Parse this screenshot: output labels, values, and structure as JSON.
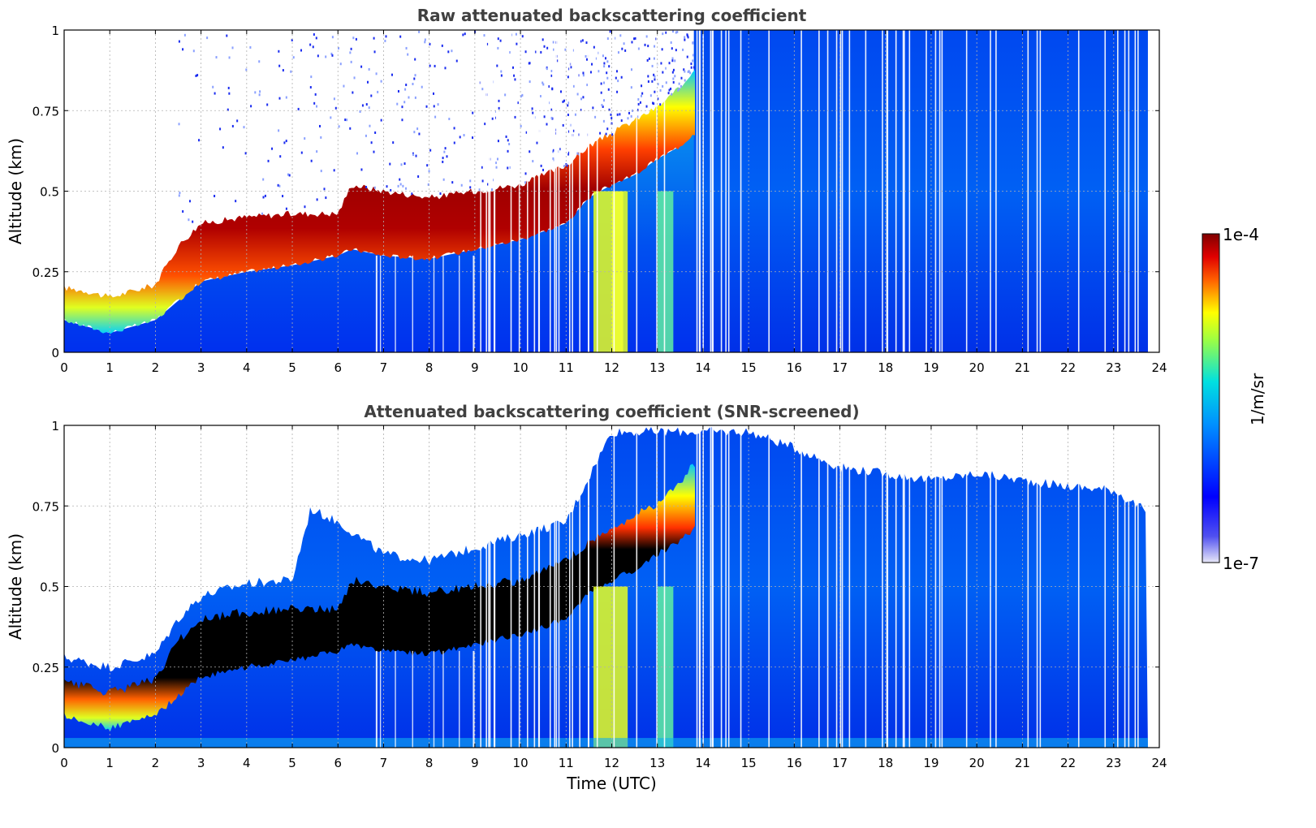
{
  "chart_data": [
    {
      "type": "heatmap",
      "title": "Raw attenuated backscattering coefficient",
      "xlabel": "",
      "ylabel": "Altitude (km)",
      "xlim": [
        0,
        24
      ],
      "ylim": [
        0,
        1
      ],
      "xticks": [
        0,
        1,
        2,
        3,
        4,
        5,
        6,
        7,
        8,
        9,
        10,
        11,
        12,
        13,
        14,
        15,
        16,
        17,
        18,
        19,
        20,
        21,
        22,
        23,
        24
      ],
      "yticks": [
        0,
        0.25,
        0.5,
        0.75,
        1
      ],
      "ytick_labels": [
        "0",
        "0.25",
        "0.5",
        "0.75",
        "1"
      ],
      "grid": true,
      "screened": false,
      "layer_top_km": {
        "time_utc": [
          0,
          0.5,
          1.0,
          1.5,
          2.0,
          2.5,
          3.0,
          4.0,
          5.0,
          6.0,
          6.3,
          7.0,
          8.0,
          9.0,
          10.0,
          11.0,
          11.5,
          12.0,
          12.5,
          13.0,
          13.5,
          13.8
        ],
        "altitude": [
          0.2,
          0.19,
          0.17,
          0.19,
          0.21,
          0.33,
          0.4,
          0.42,
          0.43,
          0.43,
          0.52,
          0.5,
          0.48,
          0.5,
          0.52,
          0.58,
          0.64,
          0.68,
          0.72,
          0.76,
          0.82,
          0.88
        ]
      },
      "layer_base_km": {
        "time_utc": [
          0,
          0.5,
          1.0,
          1.5,
          2.0,
          2.5,
          3.0,
          4.0,
          5.0,
          6.0,
          6.3,
          7.0,
          8.0,
          9.0,
          10.0,
          11.0,
          11.5,
          12.0,
          12.5,
          13.0,
          13.5,
          13.8
        ],
        "altitude": [
          0.1,
          0.08,
          0.06,
          0.08,
          0.1,
          0.16,
          0.22,
          0.25,
          0.27,
          0.3,
          0.32,
          0.3,
          0.29,
          0.32,
          0.35,
          0.4,
          0.48,
          0.52,
          0.55,
          0.6,
          0.64,
          0.68
        ]
      },
      "data_end_utc": 23.75
    },
    {
      "type": "heatmap",
      "title": "Attenuated backscattering coefficient (SNR-screened)",
      "xlabel": "Time (UTC)",
      "ylabel": "Altitude (km)",
      "xlim": [
        0,
        24
      ],
      "ylim": [
        0,
        1
      ],
      "xticks": [
        0,
        1,
        2,
        3,
        4,
        5,
        6,
        7,
        8,
        9,
        10,
        11,
        12,
        13,
        14,
        15,
        16,
        17,
        18,
        19,
        20,
        21,
        22,
        23,
        24
      ],
      "yticks": [
        0,
        0.25,
        0.5,
        0.75,
        1
      ],
      "ytick_labels": [
        "0",
        "0.25",
        "0.5",
        "0.75",
        "1"
      ],
      "grid": true,
      "screened": true,
      "saturated_color": "#000000",
      "signal_top_km": {
        "time_utc": [
          0,
          1.0,
          2.0,
          2.5,
          3.0,
          4.0,
          5.0,
          5.4,
          6.0,
          7.0,
          8.0,
          9.0,
          10.0,
          11.0,
          12.0,
          13.0,
          14.0,
          15.0,
          16.0,
          17.0,
          18.0,
          19.0,
          20.0,
          21.0,
          22.0,
          23.0,
          23.75
        ],
        "altitude": [
          0.28,
          0.25,
          0.29,
          0.4,
          0.47,
          0.51,
          0.52,
          0.74,
          0.7,
          0.6,
          0.58,
          0.62,
          0.66,
          0.7,
          0.98,
          0.98,
          0.98,
          0.98,
          0.93,
          0.87,
          0.85,
          0.83,
          0.85,
          0.83,
          0.81,
          0.8,
          0.73
        ]
      },
      "data_end_utc": 23.75
    }
  ],
  "colorbar": {
    "label": "1/m/sr",
    "max_label": "1e-4",
    "min_label": "1e-7",
    "scale": "log",
    "range": [
      1e-07,
      0.0001
    ],
    "colormap": [
      "#e8e8f8",
      "#0000ff",
      "#00c8ff",
      "#ffff00",
      "#ff6000",
      "#800000"
    ]
  }
}
